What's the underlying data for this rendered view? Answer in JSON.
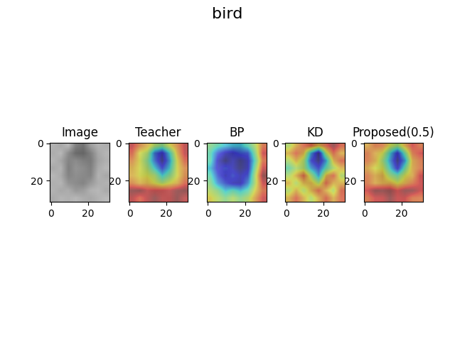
{
  "title": "bird",
  "chart_data": [
    {
      "type": "image",
      "title": "Image",
      "xlim": [
        -0.5,
        31.5
      ],
      "ylim": [
        31.5,
        -0.5
      ],
      "xticks": [
        0,
        20
      ],
      "yticks": [
        0,
        20
      ],
      "cells": [
        [
          0.7,
          0.66,
          0.72,
          0.5,
          0.45,
          0.62,
          0.7,
          0.68
        ],
        [
          0.68,
          0.72,
          0.55,
          0.42,
          0.4,
          0.5,
          0.66,
          0.71
        ],
        [
          0.71,
          0.65,
          0.52,
          0.55,
          0.5,
          0.48,
          0.64,
          0.69
        ],
        [
          0.66,
          0.7,
          0.5,
          0.58,
          0.55,
          0.5,
          0.67,
          0.72
        ],
        [
          0.72,
          0.67,
          0.52,
          0.56,
          0.54,
          0.52,
          0.7,
          0.66
        ],
        [
          0.69,
          0.71,
          0.58,
          0.55,
          0.52,
          0.6,
          0.68,
          0.7
        ],
        [
          0.7,
          0.66,
          0.68,
          0.6,
          0.62,
          0.7,
          0.72,
          0.67
        ],
        [
          0.67,
          0.71,
          0.69,
          0.72,
          0.68,
          0.66,
          0.7,
          0.73
        ]
      ]
    },
    {
      "type": "heatmap",
      "title": "Teacher",
      "xlim": [
        -0.5,
        31.5
      ],
      "ylim": [
        31.5,
        -0.5
      ],
      "xticks": [
        0,
        20
      ],
      "yticks": [
        0,
        20
      ],
      "cells": [
        [
          0.8,
          0.7,
          0.65,
          0.55,
          0.5,
          0.6,
          0.7,
          0.8
        ],
        [
          0.75,
          0.6,
          0.55,
          0.3,
          0.2,
          0.4,
          0.65,
          0.8
        ],
        [
          0.7,
          0.6,
          0.5,
          0.3,
          0.15,
          0.35,
          0.6,
          0.75
        ],
        [
          0.65,
          0.6,
          0.55,
          0.4,
          0.25,
          0.4,
          0.6,
          0.7
        ],
        [
          0.65,
          0.6,
          0.6,
          0.55,
          0.4,
          0.5,
          0.6,
          0.7
        ],
        [
          0.7,
          0.65,
          0.65,
          0.6,
          0.55,
          0.6,
          0.65,
          0.75
        ],
        [
          0.85,
          0.85,
          0.8,
          0.8,
          0.8,
          0.8,
          0.85,
          0.85
        ],
        [
          0.8,
          0.75,
          0.8,
          0.85,
          0.8,
          0.8,
          0.85,
          0.8
        ]
      ]
    },
    {
      "type": "heatmap",
      "title": "BP",
      "xlim": [
        -0.5,
        31.5
      ],
      "ylim": [
        31.5,
        -0.5
      ],
      "xticks": [
        0,
        20
      ],
      "yticks": [
        0,
        20
      ],
      "cells": [
        [
          0.4,
          0.35,
          0.3,
          0.3,
          0.3,
          0.35,
          0.45,
          0.6
        ],
        [
          0.35,
          0.2,
          0.15,
          0.15,
          0.2,
          0.2,
          0.4,
          0.65
        ],
        [
          0.35,
          0.15,
          0.1,
          0.15,
          0.1,
          0.15,
          0.35,
          0.6
        ],
        [
          0.3,
          0.15,
          0.2,
          0.15,
          0.1,
          0.15,
          0.4,
          0.65
        ],
        [
          0.35,
          0.2,
          0.15,
          0.2,
          0.15,
          0.2,
          0.45,
          0.7
        ],
        [
          0.4,
          0.25,
          0.2,
          0.15,
          0.15,
          0.25,
          0.45,
          0.65
        ],
        [
          0.45,
          0.4,
          0.3,
          0.35,
          0.3,
          0.35,
          0.5,
          0.6
        ],
        [
          0.5,
          0.45,
          0.4,
          0.45,
          0.4,
          0.45,
          0.55,
          0.65
        ]
      ]
    },
    {
      "type": "heatmap",
      "title": "KD",
      "xlim": [
        -0.5,
        31.5
      ],
      "ylim": [
        31.5,
        -0.5
      ],
      "xticks": [
        0,
        20
      ],
      "yticks": [
        0,
        20
      ],
      "cells": [
        [
          0.3,
          0.35,
          0.4,
          0.4,
          0.35,
          0.4,
          0.45,
          0.4
        ],
        [
          0.35,
          0.4,
          0.35,
          0.2,
          0.1,
          0.3,
          0.4,
          0.35
        ],
        [
          0.3,
          0.35,
          0.3,
          0.15,
          0.1,
          0.2,
          0.35,
          0.4
        ],
        [
          0.25,
          0.3,
          0.3,
          0.2,
          0.15,
          0.25,
          0.3,
          0.35
        ],
        [
          0.3,
          0.35,
          0.4,
          0.3,
          0.2,
          0.35,
          0.4,
          0.3
        ],
        [
          0.35,
          0.3,
          0.35,
          0.35,
          0.3,
          0.4,
          0.35,
          0.35
        ],
        [
          0.3,
          0.35,
          0.3,
          0.35,
          0.4,
          0.35,
          0.3,
          0.4
        ],
        [
          0.35,
          0.4,
          0.35,
          0.3,
          0.35,
          0.4,
          0.35,
          0.4
        ]
      ]
    },
    {
      "type": "heatmap",
      "title": "Proposed(0.5)",
      "xlim": [
        -0.5,
        31.5
      ],
      "ylim": [
        31.5,
        -0.5
      ],
      "xticks": [
        0,
        20
      ],
      "yticks": [
        0,
        20
      ],
      "cells": [
        [
          0.55,
          0.6,
          0.6,
          0.5,
          0.45,
          0.55,
          0.65,
          0.6
        ],
        [
          0.6,
          0.55,
          0.5,
          0.35,
          0.2,
          0.4,
          0.6,
          0.65
        ],
        [
          0.6,
          0.55,
          0.45,
          0.3,
          0.15,
          0.3,
          0.55,
          0.6
        ],
        [
          0.55,
          0.5,
          0.5,
          0.35,
          0.2,
          0.4,
          0.55,
          0.6
        ],
        [
          0.6,
          0.55,
          0.55,
          0.45,
          0.4,
          0.5,
          0.55,
          0.65
        ],
        [
          0.6,
          0.55,
          0.55,
          0.55,
          0.5,
          0.55,
          0.6,
          0.65
        ],
        [
          0.65,
          0.7,
          0.7,
          0.7,
          0.65,
          0.7,
          0.7,
          0.65
        ],
        [
          0.6,
          0.65,
          0.65,
          0.7,
          0.65,
          0.65,
          0.6,
          0.6
        ]
      ]
    }
  ]
}
